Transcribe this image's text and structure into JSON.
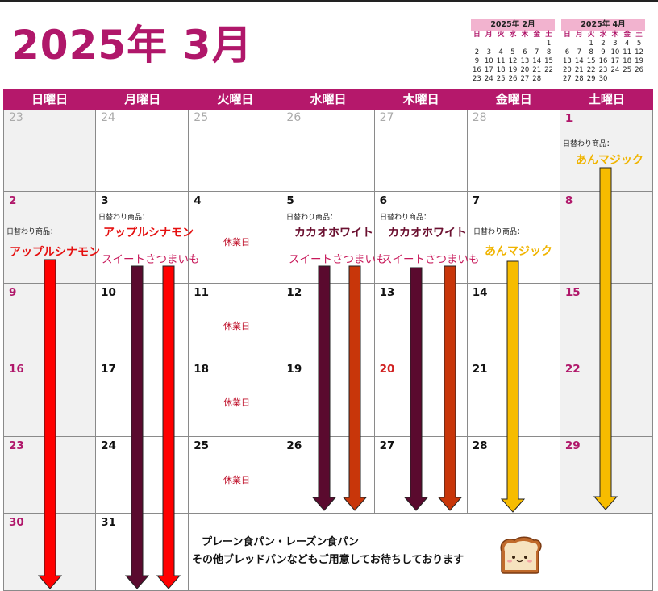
{
  "title": "2025年 3月",
  "mini_calendars": [
    {
      "title": "2025年 2月",
      "weekdays": [
        "日",
        "月",
        "火",
        "水",
        "木",
        "金",
        "土"
      ],
      "days": [
        "",
        "",
        "",
        "",
        "",
        "",
        "1",
        "2",
        "3",
        "4",
        "5",
        "6",
        "7",
        "8",
        "9",
        "10",
        "11",
        "12",
        "13",
        "14",
        "15",
        "16",
        "17",
        "18",
        "19",
        "20",
        "21",
        "22",
        "23",
        "24",
        "25",
        "26",
        "27",
        "28",
        ""
      ]
    },
    {
      "title": "2025年 4月",
      "weekdays": [
        "日",
        "月",
        "火",
        "水",
        "木",
        "金",
        "土"
      ],
      "days": [
        "",
        "",
        "1",
        "2",
        "3",
        "4",
        "5",
        "6",
        "7",
        "8",
        "9",
        "10",
        "11",
        "12",
        "13",
        "14",
        "15",
        "16",
        "17",
        "18",
        "19",
        "20",
        "21",
        "22",
        "23",
        "24",
        "25",
        "26",
        "27",
        "28",
        "29",
        "30",
        "",
        "",
        ""
      ]
    }
  ],
  "weekdays": [
    "日曜日",
    "月曜日",
    "火曜日",
    "水曜日",
    "木曜日",
    "金曜日",
    "土曜日"
  ],
  "weeks": [
    [
      {
        "d": "23",
        "k": "grey"
      },
      {
        "d": "24",
        "k": "grey"
      },
      {
        "d": "25",
        "k": "grey"
      },
      {
        "d": "26",
        "k": "grey"
      },
      {
        "d": "27",
        "k": "grey"
      },
      {
        "d": "28",
        "k": "grey"
      },
      {
        "d": "1",
        "k": "sat"
      }
    ],
    [
      {
        "d": "2",
        "k": "sun"
      },
      {
        "d": "3",
        "k": ""
      },
      {
        "d": "4",
        "k": ""
      },
      {
        "d": "5",
        "k": ""
      },
      {
        "d": "6",
        "k": ""
      },
      {
        "d": "7",
        "k": ""
      },
      {
        "d": "8",
        "k": "sat"
      }
    ],
    [
      {
        "d": "9",
        "k": "sun"
      },
      {
        "d": "10",
        "k": ""
      },
      {
        "d": "11",
        "k": ""
      },
      {
        "d": "12",
        "k": ""
      },
      {
        "d": "13",
        "k": ""
      },
      {
        "d": "14",
        "k": ""
      },
      {
        "d": "15",
        "k": "sat"
      }
    ],
    [
      {
        "d": "16",
        "k": "sun"
      },
      {
        "d": "17",
        "k": ""
      },
      {
        "d": "18",
        "k": ""
      },
      {
        "d": "19",
        "k": ""
      },
      {
        "d": "20",
        "k": "hol"
      },
      {
        "d": "21",
        "k": ""
      },
      {
        "d": "22",
        "k": "sat"
      }
    ],
    [
      {
        "d": "23",
        "k": "sun"
      },
      {
        "d": "24",
        "k": ""
      },
      {
        "d": "25",
        "k": ""
      },
      {
        "d": "26",
        "k": ""
      },
      {
        "d": "27",
        "k": ""
      },
      {
        "d": "28",
        "k": ""
      },
      {
        "d": "29",
        "k": "sat"
      }
    ],
    [
      {
        "d": "30",
        "k": "sun"
      },
      {
        "d": "31",
        "k": ""
      }
    ]
  ],
  "daily_label": "日替わり商品：",
  "closed_label": "休業日",
  "products": {
    "apple_cinnamon": "アップルシナモン",
    "sweet_potato": "スイートさつまいも",
    "cacao_white": "カカオホワイト",
    "an_magic": "あんマジック"
  },
  "footer": {
    "line1": "プレーン食パン・レーズン食パン",
    "line2": "その他ブレッドパンなどもご用意してお待ちしております"
  },
  "colors": {
    "brand": "#b5186b",
    "arrow_red": "#ff0000",
    "arrow_maroon": "#5a0a2e",
    "arrow_orange": "#c8360a",
    "arrow_yellow": "#f7bc00"
  },
  "icons": {
    "bread": "bread-loaf-face-icon"
  }
}
